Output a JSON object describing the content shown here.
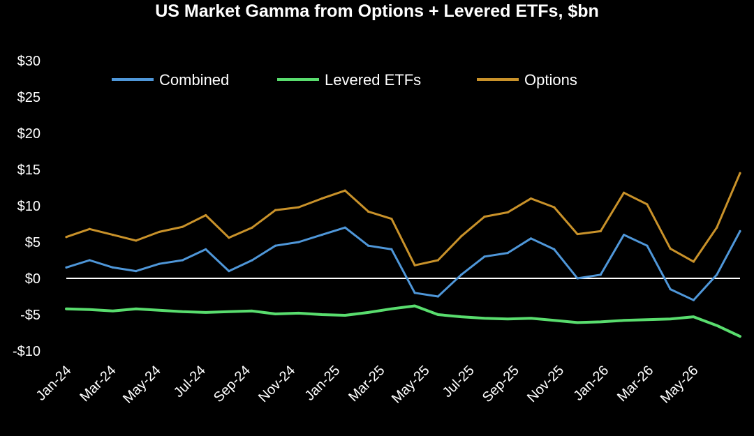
{
  "chart_data": {
    "type": "line",
    "title": "US Market Gamma from Options + Levered ETFs, $bn",
    "xlabel": "",
    "ylabel": "",
    "ylim": [
      -10,
      30
    ],
    "yticks": [
      -10,
      -5,
      0,
      5,
      10,
      15,
      20,
      25,
      30
    ],
    "ytick_labels": [
      "-$10",
      "-$5",
      "$0",
      "$5",
      "$10",
      "$15",
      "$20",
      "$25",
      "$30"
    ],
    "xtick_labels": [
      "Jan-24",
      "Mar-24",
      "May-24",
      "Jul-24",
      "Sep-24",
      "Nov-24",
      "Jan-25",
      "Mar-25",
      "May-25",
      "Jul-25",
      "Sep-25",
      "Nov-25",
      "Jan-26",
      "Mar-26",
      "May-26"
    ],
    "x": [
      "Jan-24",
      "Feb-24",
      "Mar-24",
      "Apr-24",
      "May-24",
      "Jun-24",
      "Jul-24",
      "Aug-24",
      "Sep-24",
      "Oct-24",
      "Nov-24",
      "Dec-24",
      "Jan-25",
      "Feb-25",
      "Mar-25",
      "Apr-25",
      "May-25",
      "Jun-25",
      "Jul-25",
      "Aug-25",
      "Sep-25",
      "Oct-25",
      "Nov-25",
      "Dec-25",
      "Jan-26",
      "Feb-26",
      "Mar-26",
      "Apr-26",
      "May-26",
      "Jun-26"
    ],
    "series": [
      {
        "name": "Combined",
        "color": "#4f97d9",
        "values": [
          1.5,
          2.5,
          1.5,
          1.0,
          2.0,
          2.5,
          4.0,
          1.0,
          2.5,
          4.5,
          5.0,
          6.0,
          7.0,
          4.5,
          4.0,
          -2.0,
          -2.5,
          0.5,
          3.0,
          3.5,
          5.5,
          4.0,
          0.0,
          0.5,
          6.0,
          4.5,
          -1.5,
          -3.0,
          0.5,
          6.5
        ]
      },
      {
        "name": "Levered ETFs",
        "color": "#59dd6e",
        "values": [
          -4.2,
          -4.3,
          -4.5,
          -4.2,
          -4.4,
          -4.6,
          -4.7,
          -4.6,
          -4.5,
          -4.9,
          -4.8,
          -5.0,
          -5.1,
          -4.7,
          -4.2,
          -3.8,
          -5.0,
          -5.3,
          -5.5,
          -5.6,
          -5.5,
          -5.8,
          -6.1,
          -6.0,
          -5.8,
          -5.7,
          -5.6,
          -5.3,
          -6.5,
          -8.0
        ]
      },
      {
        "name": "Options",
        "color": "#c9922a",
        "values": [
          5.7,
          6.8,
          6.0,
          5.2,
          6.4,
          7.1,
          8.7,
          5.6,
          7.0,
          9.4,
          9.8,
          11.0,
          12.1,
          9.2,
          8.2,
          1.8,
          2.5,
          5.8,
          8.5,
          9.1,
          11.0,
          9.8,
          6.1,
          6.5,
          11.8,
          10.2,
          4.1,
          2.3,
          7.0,
          14.5
        ]
      }
    ],
    "zero_line": true,
    "grid": false,
    "legend": "top"
  }
}
